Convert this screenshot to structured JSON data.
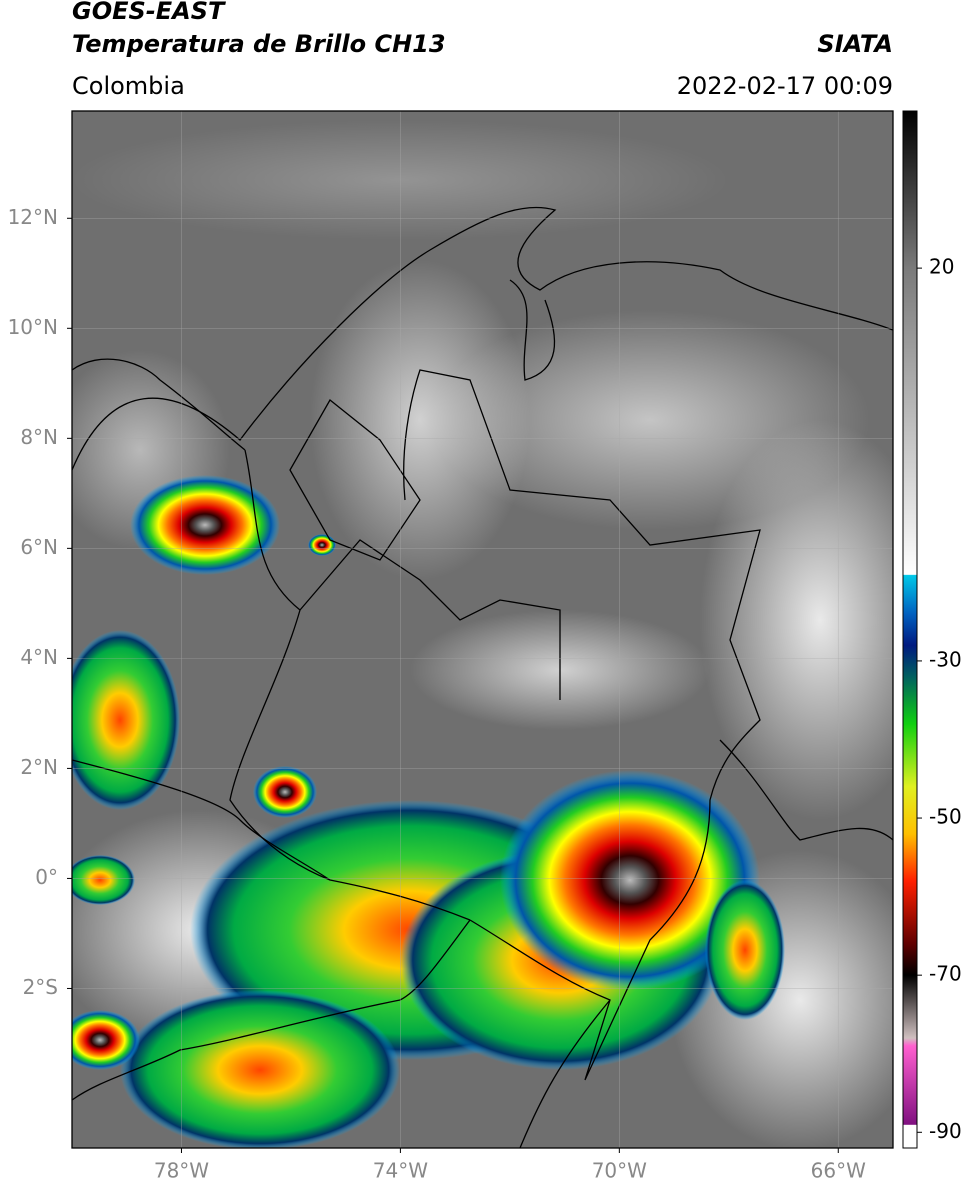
{
  "header": {
    "title": "GOES-EAST",
    "subtitle": "Temperatura de Brillo CH13",
    "source": "SIATA",
    "region": "Colombia",
    "datetime": "2022-02-17 00:09"
  },
  "map": {
    "xlim": [
      -80,
      -65
    ],
    "ylim": [
      -4.9,
      13.95
    ],
    "xticks": [
      {
        "value": -78,
        "label": "78°W"
      },
      {
        "value": -74,
        "label": "74°W"
      },
      {
        "value": -70,
        "label": "70°W"
      },
      {
        "value": -66,
        "label": "66°W"
      }
    ],
    "yticks": [
      {
        "value": 12,
        "label": "12°N"
      },
      {
        "value": 10,
        "label": "10°N"
      },
      {
        "value": 8,
        "label": "8°N"
      },
      {
        "value": 6,
        "label": "6°N"
      },
      {
        "value": 4,
        "label": "4°N"
      },
      {
        "value": 2,
        "label": "2°N"
      },
      {
        "value": 0,
        "label": "0°"
      },
      {
        "value": -2,
        "label": "2°S"
      }
    ],
    "grid": true
  },
  "colorbar": {
    "lim": [
      -92,
      40
    ],
    "ticks": [
      20,
      -30,
      -50,
      -70,
      -90
    ],
    "stops": [
      {
        "value": 40,
        "color": "#000000"
      },
      {
        "value": 20,
        "color": "#7a7a7a"
      },
      {
        "value": -19,
        "color": "#ffffff"
      },
      {
        "value": -19.1,
        "color": "#00c8e8"
      },
      {
        "value": -24,
        "color": "#0060c0"
      },
      {
        "value": -28,
        "color": "#001a80"
      },
      {
        "value": -32,
        "color": "#006060"
      },
      {
        "value": -38,
        "color": "#10d010"
      },
      {
        "value": -46,
        "color": "#e0f020"
      },
      {
        "value": -52,
        "color": "#ffc000"
      },
      {
        "value": -58,
        "color": "#ff2000"
      },
      {
        "value": -66,
        "color": "#600000"
      },
      {
        "value": -70,
        "color": "#000000"
      },
      {
        "value": -78,
        "color": "#d0c0c0"
      },
      {
        "value": -79,
        "color": "#ff60d0"
      },
      {
        "value": -89,
        "color": "#801080"
      },
      {
        "value": -89.1,
        "color": "#ffffff"
      },
      {
        "value": -92,
        "color": "#ffffff"
      }
    ]
  }
}
